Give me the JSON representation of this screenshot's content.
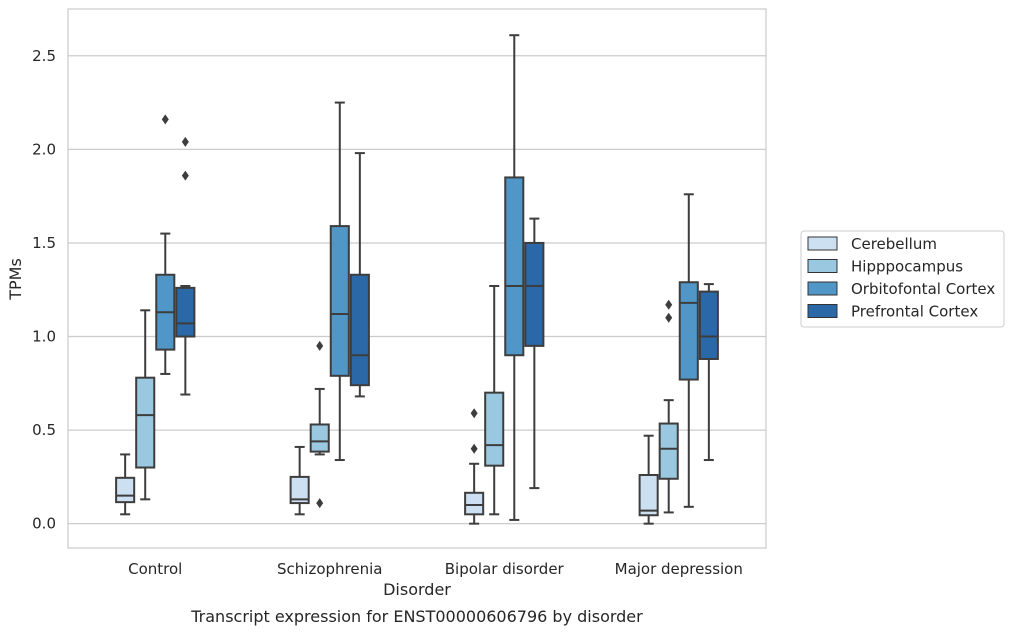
{
  "chart_data": {
    "type": "boxplot",
    "title": "",
    "caption": "Transcript expression for ENST00000606796 by disorder",
    "xlabel": "Disorder",
    "ylabel": "TPMs",
    "ylim": [
      -0.13,
      2.75
    ],
    "yticks": [
      0.0,
      0.5,
      1.0,
      1.5,
      2.0,
      2.5
    ],
    "ytick_labels": [
      "0.0",
      "0.5",
      "1.0",
      "1.5",
      "2.0",
      "2.5"
    ],
    "grid": "horizontal",
    "legend_position": "right",
    "categories": [
      "Control",
      "Schizophrenia",
      "Bipolar disorder",
      "Major depression"
    ],
    "series": [
      {
        "name": "Cerebellum",
        "color": "#cde0f1",
        "boxes": [
          {
            "whislo": 0.05,
            "q1": 0.115,
            "med": 0.15,
            "q3": 0.245,
            "whishi": 0.37,
            "fliers": []
          },
          {
            "whislo": 0.05,
            "q1": 0.11,
            "med": 0.13,
            "q3": 0.25,
            "whishi": 0.41,
            "fliers": []
          },
          {
            "whislo": 0.0,
            "q1": 0.05,
            "med": 0.1,
            "q3": 0.165,
            "whishi": 0.32,
            "fliers": [
              0.4,
              0.59
            ]
          },
          {
            "whislo": 0.0,
            "q1": 0.045,
            "med": 0.07,
            "q3": 0.26,
            "whishi": 0.47,
            "fliers": []
          }
        ]
      },
      {
        "name": "Hipppocampus",
        "color": "#9ac8e0",
        "boxes": [
          {
            "whislo": 0.13,
            "q1": 0.3,
            "med": 0.58,
            "q3": 0.78,
            "whishi": 1.14,
            "fliers": []
          },
          {
            "whislo": 0.37,
            "q1": 0.385,
            "med": 0.44,
            "q3": 0.53,
            "whishi": 0.72,
            "fliers": [
              0.11,
              0.95
            ]
          },
          {
            "whislo": 0.05,
            "q1": 0.31,
            "med": 0.42,
            "q3": 0.7,
            "whishi": 1.27,
            "fliers": []
          },
          {
            "whislo": 0.06,
            "q1": 0.24,
            "med": 0.4,
            "q3": 0.535,
            "whishi": 0.66,
            "fliers": [
              1.1,
              1.17
            ]
          }
        ]
      },
      {
        "name": "Orbitofontal Cortex",
        "color": "#5097c7",
        "boxes": [
          {
            "whislo": 0.8,
            "q1": 0.93,
            "med": 1.13,
            "q3": 1.33,
            "whishi": 1.55,
            "fliers": [
              2.16
            ]
          },
          {
            "whislo": 0.34,
            "q1": 0.79,
            "med": 1.12,
            "q3": 1.59,
            "whishi": 2.25,
            "fliers": []
          },
          {
            "whislo": 0.02,
            "q1": 0.9,
            "med": 1.27,
            "q3": 1.85,
            "whishi": 2.61,
            "fliers": []
          },
          {
            "whislo": 0.09,
            "q1": 0.77,
            "med": 1.18,
            "q3": 1.29,
            "whishi": 1.76,
            "fliers": []
          }
        ]
      },
      {
        "name": "Prefrontal Cortex",
        "color": "#2a68a7",
        "boxes": [
          {
            "whislo": 0.69,
            "q1": 1.0,
            "med": 1.07,
            "q3": 1.26,
            "whishi": 1.27,
            "fliers": [
              1.86,
              2.04
            ]
          },
          {
            "whislo": 0.68,
            "q1": 0.74,
            "med": 0.9,
            "q3": 1.33,
            "whishi": 1.98,
            "fliers": []
          },
          {
            "whislo": 0.19,
            "q1": 0.95,
            "med": 1.27,
            "q3": 1.5,
            "whishi": 1.63,
            "fliers": []
          },
          {
            "whislo": 0.34,
            "q1": 0.88,
            "med": 1.0,
            "q3": 1.24,
            "whishi": 1.28,
            "fliers": []
          }
        ]
      }
    ]
  }
}
